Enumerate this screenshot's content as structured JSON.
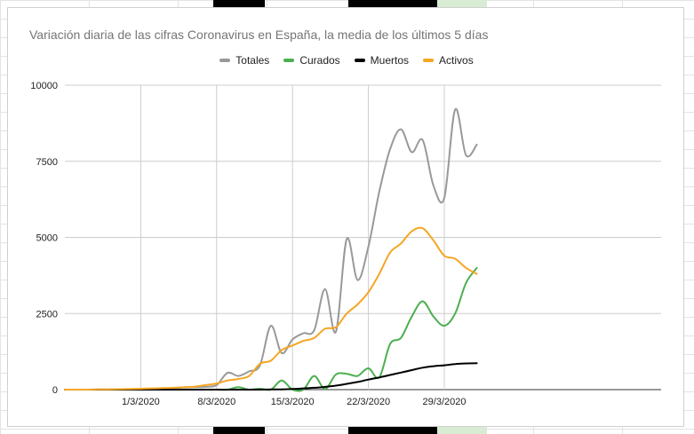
{
  "chart_data": {
    "type": "line",
    "title": "Variación diaria de las cifras Coronavirus en España, la media de los últimos 5 días",
    "xlabel": "",
    "ylabel": "",
    "ylim": [
      0,
      10000
    ],
    "y_ticks": [
      "0",
      "2500",
      "5000",
      "7500",
      "10000"
    ],
    "x_range": [
      0,
      55
    ],
    "x_ticks": [
      {
        "label": "1/3/2020",
        "x": 7
      },
      {
        "label": "8/3/2020",
        "x": 14
      },
      {
        "label": "15/3/2020",
        "x": 21
      },
      {
        "label": "22/3/2020",
        "x": 28
      },
      {
        "label": "29/3/2020",
        "x": 35
      }
    ],
    "grid": true,
    "legend": "top-center",
    "x": [
      0,
      1,
      2,
      3,
      4,
      5,
      6,
      7,
      8,
      9,
      10,
      11,
      12,
      13,
      14,
      15,
      16,
      17,
      18,
      19,
      20,
      21,
      22,
      23,
      24,
      25,
      26,
      27,
      28,
      29,
      30,
      31,
      32,
      33,
      34,
      35,
      36,
      37,
      38
    ],
    "series": [
      {
        "name": "Totales",
        "color": "#999999",
        "values": [
          0,
          0,
          0,
          5,
          8,
          10,
          15,
          20,
          30,
          40,
          50,
          70,
          80,
          90,
          150,
          550,
          450,
          600,
          800,
          2100,
          1200,
          1650,
          1850,
          1950,
          3300,
          1900,
          4950,
          3600,
          4700,
          6500,
          7900,
          8550,
          7800,
          8200,
          6700,
          6300,
          9200,
          7700,
          8050
        ]
      },
      {
        "name": "Curados",
        "color": "#4caf50",
        "values": [
          0,
          0,
          0,
          0,
          0,
          0,
          0,
          0,
          0,
          0,
          0,
          0,
          0,
          0,
          0,
          0,
          80,
          0,
          30,
          0,
          300,
          0,
          0,
          450,
          20,
          500,
          520,
          450,
          700,
          400,
          1500,
          1700,
          2400,
          2900,
          2400,
          2100,
          2500,
          3500,
          4000
        ]
      },
      {
        "name": "Muertos",
        "color": "#000000",
        "values": [
          0,
          0,
          0,
          0,
          0,
          0,
          0,
          0,
          0,
          0,
          0,
          0,
          0,
          0,
          0,
          0,
          0,
          0,
          0,
          5,
          10,
          20,
          40,
          60,
          90,
          130,
          190,
          250,
          330,
          400,
          480,
          560,
          640,
          720,
          770,
          800,
          840,
          860,
          870
        ]
      },
      {
        "name": "Activos",
        "color": "#f5a623",
        "values": [
          0,
          0,
          0,
          5,
          10,
          15,
          20,
          30,
          40,
          50,
          60,
          80,
          100,
          150,
          200,
          300,
          350,
          450,
          850,
          950,
          1300,
          1450,
          1600,
          1700,
          2000,
          2050,
          2500,
          2800,
          3200,
          3800,
          4500,
          4800,
          5200,
          5300,
          4900,
          4400,
          4300,
          4000,
          3800
        ]
      }
    ]
  }
}
